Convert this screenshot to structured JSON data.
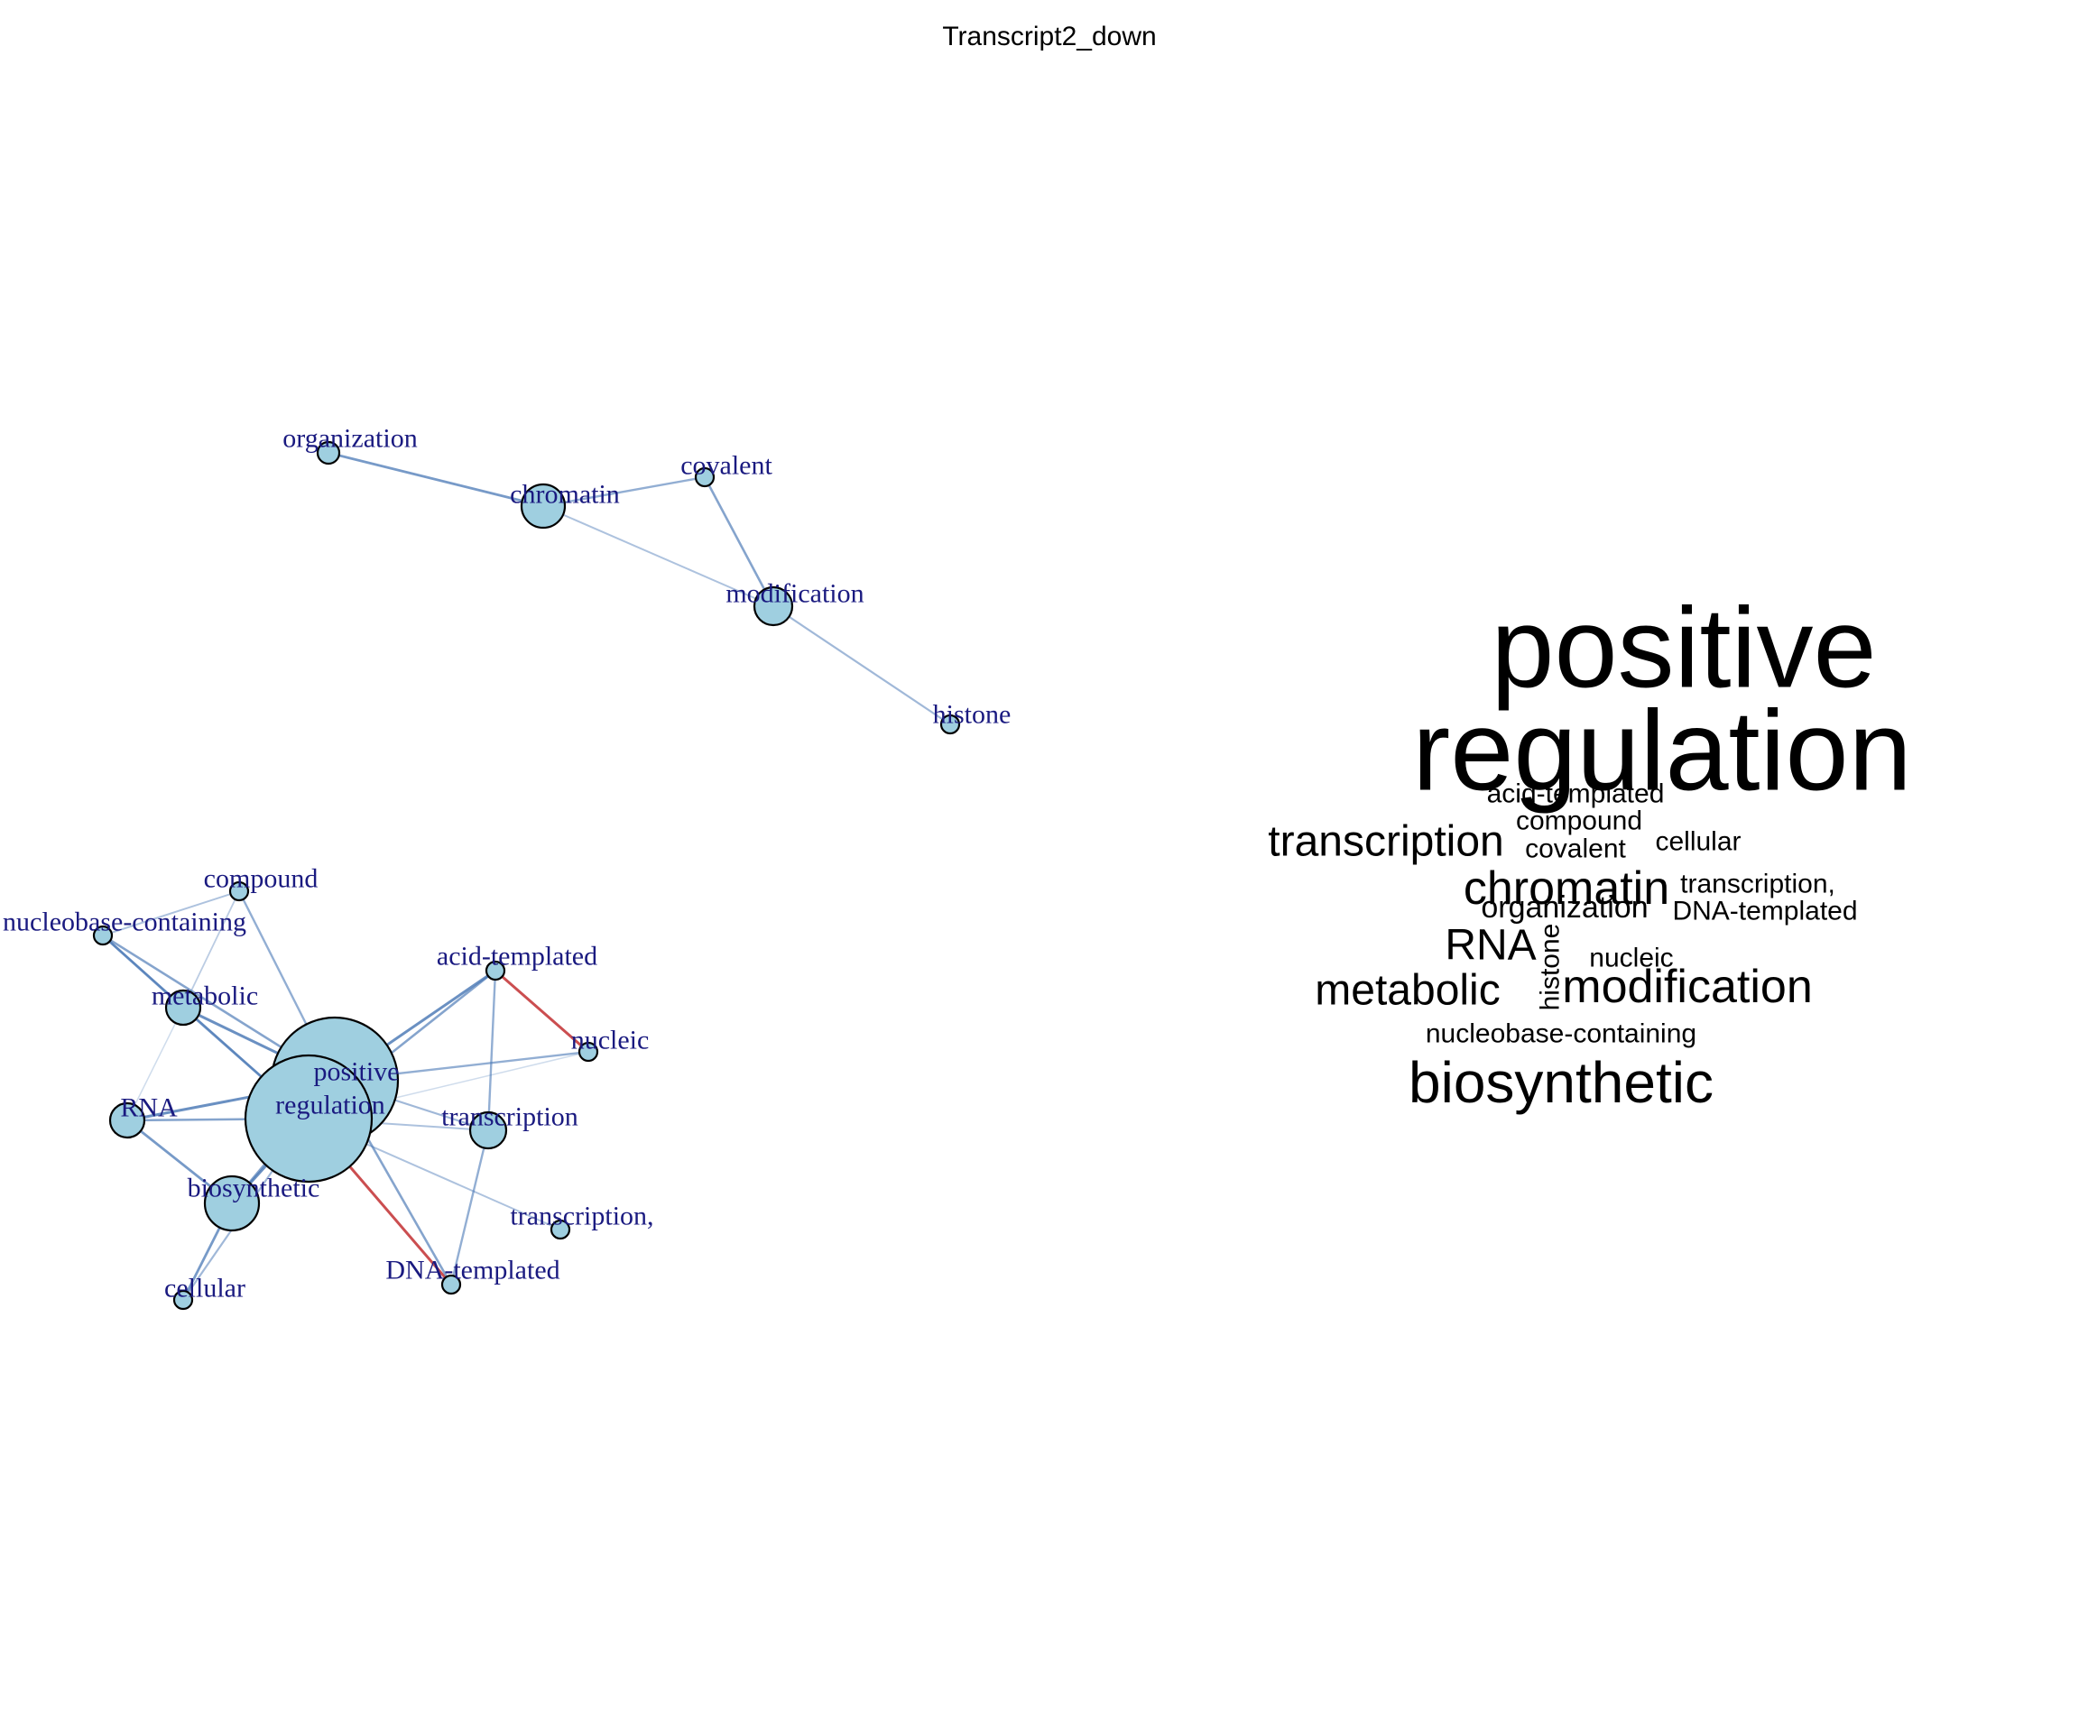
{
  "title": "Transcript2_down",
  "colors": {
    "node_fill": "#9fcfe0",
    "node_stroke": "#000000",
    "label": "#1a1a80",
    "edge_blue": "#4a78b5",
    "edge_red": "#c0282b",
    "word": "#000000"
  },
  "network": {
    "nodes": [
      {
        "id": "organization",
        "label": "organization"
      },
      {
        "id": "chromatin",
        "label": "chromatin"
      },
      {
        "id": "covalent",
        "label": "covalent"
      },
      {
        "id": "modification",
        "label": "modification"
      },
      {
        "id": "histone",
        "label": "histone"
      },
      {
        "id": "compound",
        "label": "compound"
      },
      {
        "id": "nucleobase-containing",
        "label": "nucleobase-containing"
      },
      {
        "id": "metabolic",
        "label": "metabolic"
      },
      {
        "id": "acid-templated",
        "label": "acid-templated"
      },
      {
        "id": "nucleic",
        "label": "nucleic"
      },
      {
        "id": "positive",
        "label": "positive"
      },
      {
        "id": "regulation",
        "label": "regulation"
      },
      {
        "id": "RNA",
        "label": "RNA"
      },
      {
        "id": "transcription",
        "label": "transcription"
      },
      {
        "id": "biosynthetic",
        "label": "biosynthetic"
      },
      {
        "id": "transcription,",
        "label": "transcription,"
      },
      {
        "id": "cellular",
        "label": "cellular"
      },
      {
        "id": "DNA-templated",
        "label": "DNA-templated"
      }
    ],
    "edges": [
      {
        "source": "organization",
        "target": "chromatin",
        "color": "blue",
        "strength": 0.8
      },
      {
        "source": "chromatin",
        "target": "covalent",
        "color": "blue",
        "strength": 0.6
      },
      {
        "source": "chromatin",
        "target": "modification",
        "color": "blue",
        "strength": 0.4
      },
      {
        "source": "covalent",
        "target": "modification",
        "color": "blue",
        "strength": 0.7
      },
      {
        "source": "modification",
        "target": "histone",
        "color": "blue",
        "strength": 0.5
      },
      {
        "source": "positive",
        "target": "regulation",
        "color": "blue",
        "strength": 0.9
      },
      {
        "source": "compound",
        "target": "nucleobase-containing",
        "color": "blue",
        "strength": 0.4
      },
      {
        "source": "compound",
        "target": "metabolic",
        "color": "blue",
        "strength": 0.3
      },
      {
        "source": "compound",
        "target": "positive",
        "color": "blue",
        "strength": 0.6
      },
      {
        "source": "nucleobase-containing",
        "target": "metabolic",
        "color": "blue",
        "strength": 0.8
      },
      {
        "source": "nucleobase-containing",
        "target": "positive",
        "color": "blue",
        "strength": 0.7
      },
      {
        "source": "nucleobase-containing",
        "target": "regulation",
        "color": "blue",
        "strength": 0.6
      },
      {
        "source": "metabolic",
        "target": "positive",
        "color": "blue",
        "strength": 0.9
      },
      {
        "source": "metabolic",
        "target": "regulation",
        "color": "blue",
        "strength": 0.8
      },
      {
        "source": "metabolic",
        "target": "RNA",
        "color": "blue",
        "strength": 0.15
      },
      {
        "source": "RNA",
        "target": "positive",
        "color": "blue",
        "strength": 0.9
      },
      {
        "source": "RNA",
        "target": "regulation",
        "color": "blue",
        "strength": 0.7
      },
      {
        "source": "RNA",
        "target": "biosynthetic",
        "color": "blue",
        "strength": 0.8
      },
      {
        "source": "acid-templated",
        "target": "positive",
        "color": "blue",
        "strength": 0.9
      },
      {
        "source": "acid-templated",
        "target": "regulation",
        "color": "blue",
        "strength": 0.7
      },
      {
        "source": "acid-templated",
        "target": "transcription",
        "color": "blue",
        "strength": 0.6
      },
      {
        "source": "acid-templated",
        "target": "nucleic",
        "color": "red",
        "strength": 0.9
      },
      {
        "source": "nucleic",
        "target": "positive",
        "color": "blue",
        "strength": 0.6
      },
      {
        "source": "nucleic",
        "target": "regulation",
        "color": "blue",
        "strength": 0.15
      },
      {
        "source": "transcription",
        "target": "positive",
        "color": "blue",
        "strength": 0.5
      },
      {
        "source": "transcription",
        "target": "regulation",
        "color": "blue",
        "strength": 0.4
      },
      {
        "source": "transcription",
        "target": "DNA-templated",
        "color": "blue",
        "strength": 0.6
      },
      {
        "source": "regulation",
        "target": "transcription,",
        "color": "blue",
        "strength": 0.4
      },
      {
        "source": "regulation",
        "target": "DNA-templated",
        "color": "red",
        "strength": 0.9
      },
      {
        "source": "positive",
        "target": "DNA-templated",
        "color": "blue",
        "strength": 0.7
      },
      {
        "source": "regulation",
        "target": "biosynthetic",
        "color": "blue",
        "strength": 0.9
      },
      {
        "source": "positive",
        "target": "biosynthetic",
        "color": "blue",
        "strength": 0.7
      },
      {
        "source": "biosynthetic",
        "target": "cellular",
        "color": "blue",
        "strength": 0.8
      },
      {
        "source": "regulation",
        "target": "cellular",
        "color": "blue",
        "strength": 0.5
      }
    ]
  },
  "wordcloud": [
    {
      "text": "positive",
      "weight": 1.0
    },
    {
      "text": "regulation",
      "weight": 1.0
    },
    {
      "text": "acid-templated",
      "weight": 0.25
    },
    {
      "text": "compound",
      "weight": 0.25
    },
    {
      "text": "transcription",
      "weight": 0.44
    },
    {
      "text": "covalent",
      "weight": 0.25
    },
    {
      "text": "cellular",
      "weight": 0.25
    },
    {
      "text": "chromatin",
      "weight": 0.5
    },
    {
      "text": "transcription,",
      "weight": 0.25
    },
    {
      "text": "organization",
      "weight": 0.31
    },
    {
      "text": "DNA-templated",
      "weight": 0.25
    },
    {
      "text": "RNA",
      "weight": 0.44
    },
    {
      "text": "histone",
      "weight": 0.25
    },
    {
      "text": "nucleic",
      "weight": 0.25
    },
    {
      "text": "metabolic",
      "weight": 0.44
    },
    {
      "text": "modification",
      "weight": 0.5
    },
    {
      "text": "nucleobase-containing",
      "weight": 0.25
    },
    {
      "text": "biosynthetic",
      "weight": 0.63
    }
  ]
}
